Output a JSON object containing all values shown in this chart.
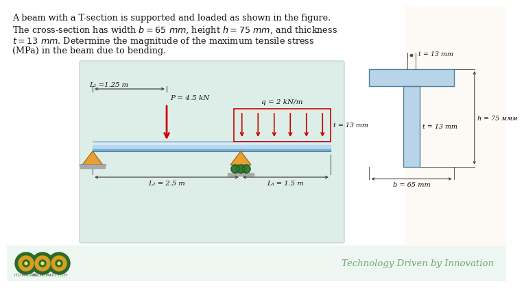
{
  "bg_white": "#ffffff",
  "bg_diagram": "#ddeee8",
  "bg_footer": "#faf5ec",
  "beam_light": "#c8dff0",
  "beam_mid": "#a8c8e0",
  "beam_dark": "#6090b8",
  "support_color": "#e8a030",
  "support_edge": "#996010",
  "roller_color": "#3a7a3a",
  "load_color": "#cc0000",
  "dim_color": "#444444",
  "tsection_color": "#b8d4e8",
  "tsection_edge": "#5080a0",
  "footer_text_color": "#70a870",
  "footer_text": "Technology Driven by Innovation",
  "logo_outer": "#2a6a2a",
  "logo_inner": "#d4a020",
  "text_color": "#111111",
  "labels": {
    "P": "P = 4.5 kN",
    "L1": "L₁ =1.25 m",
    "q": "q = 2 kN/m",
    "t_top": "t = 13 mm",
    "t_web": "t = 13 mm",
    "h": "h = 75 ммм",
    "L2": "L₂ = 2.5 m",
    "L3": "L₃ = 1.5 m",
    "b": "b = 65 mm"
  }
}
